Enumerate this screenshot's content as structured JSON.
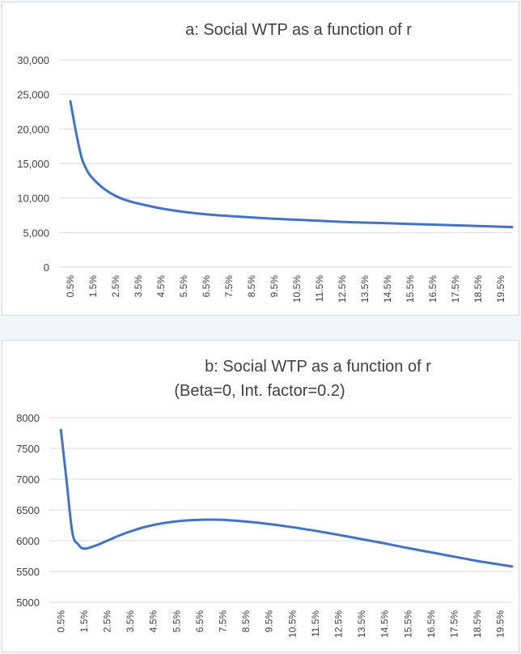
{
  "chart_data": [
    {
      "type": "line",
      "title": "a: Social WTP as a function of r",
      "subtitle": "",
      "xlabel": "",
      "ylabel": "",
      "ylim": [
        0,
        30000
      ],
      "y_ticks": [
        "0",
        "5,000",
        "10,000",
        "15,000",
        "20,000",
        "25,000",
        "30,000"
      ],
      "grid": true,
      "line_color": "#4472c4",
      "x_tick_labels": [
        "0.5%",
        "1.5%",
        "2.5%",
        "3.5%",
        "4.5%",
        "5.5%",
        "6.5%",
        "7.5%",
        "8.5%",
        "9.5%",
        "10.5%",
        "11.5%",
        "12.5%",
        "13.5%",
        "14.5%",
        "15.5%",
        "16.5%",
        "17.5%",
        "18.5%",
        "19.5%"
      ],
      "x": [
        0.5,
        0.75,
        1.0,
        1.25,
        1.5,
        2.0,
        2.5,
        3.0,
        3.5,
        4.5,
        5.5,
        6.5,
        7.5,
        8.5,
        9.5,
        10.5,
        11.5,
        12.5,
        13.5,
        14.5,
        15.5,
        16.5,
        17.5,
        18.5,
        19.5,
        20.0
      ],
      "values": [
        24000,
        19500,
        15800,
        13900,
        12800,
        11300,
        10300,
        9650,
        9200,
        8500,
        8000,
        7650,
        7400,
        7200,
        7000,
        6850,
        6700,
        6550,
        6450,
        6350,
        6250,
        6150,
        6050,
        5950,
        5850,
        5800
      ]
    },
    {
      "type": "line",
      "title": "b: Social WTP as a function of r",
      "subtitle": "(Beta=0, Int. factor=0.2)",
      "xlabel": "",
      "ylabel": "",
      "ylim": [
        5000,
        8000
      ],
      "y_ticks": [
        "5000",
        "5500",
        "6000",
        "6500",
        "7000",
        "7500",
        "8000"
      ],
      "grid": true,
      "line_color": "#4472c4",
      "x_tick_labels": [
        "0.5%",
        "1.5%",
        "2.5%",
        "3.5%",
        "4.5%",
        "5.5%",
        "6.5%",
        "7.5%",
        "8.5%",
        "9.5%",
        "10.5%",
        "11.5%",
        "12.5%",
        "13.5%",
        "14.5%",
        "15.5%",
        "16.5%",
        "17.5%",
        "18.5%",
        "19.5%"
      ],
      "x": [
        0.5,
        0.75,
        1.0,
        1.25,
        1.5,
        2.0,
        2.5,
        3.0,
        3.5,
        4.0,
        4.5,
        5.0,
        5.5,
        6.0,
        6.5,
        7.0,
        7.5,
        8.5,
        9.5,
        10.5,
        11.5,
        12.5,
        13.5,
        14.5,
        15.5,
        16.5,
        17.5,
        18.5,
        19.5,
        20.0
      ],
      "values": [
        7800,
        6950,
        6120,
        5940,
        5870,
        5920,
        6000,
        6080,
        6150,
        6210,
        6255,
        6290,
        6315,
        6330,
        6340,
        6342,
        6338,
        6310,
        6270,
        6220,
        6160,
        6095,
        6025,
        5955,
        5880,
        5810,
        5740,
        5670,
        5610,
        5580
      ]
    }
  ]
}
